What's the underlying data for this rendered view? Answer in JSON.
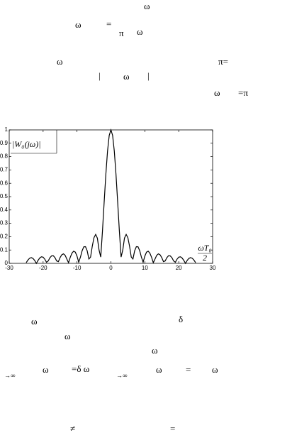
{
  "text": [
    "ω",
    "ω",
    "=",
    "π",
    "ω",
    "ω",
    "π=",
    "|",
    "ω",
    "|",
    "ω",
    "=π",
    "ω",
    "δ",
    "ω",
    "ω",
    "→∞",
    "ω",
    "=δ ω",
    "→∞",
    "ω",
    "=",
    "ω",
    "≠",
    "="
  ],
  "chart_data": {
    "type": "line",
    "annotations": [
      "|W₀(jω)|",
      "ωT₀",
      "2"
    ],
    "x": [
      -25,
      -24.5,
      -24,
      -23.5,
      -23,
      -22.5,
      -22,
      -21.5,
      -21,
      -20.5,
      -20,
      -19.5,
      -19,
      -18.5,
      -18,
      -17.5,
      -17,
      -16.5,
      -16,
      -15.5,
      -15,
      -14.5,
      -14,
      -13.5,
      -13,
      -12.5,
      -12,
      -11.5,
      -11,
      -10.5,
      -10,
      -9.5,
      -9,
      -8.5,
      -8,
      -7.5,
      -7,
      -6.5,
      -6,
      -5.5,
      -5,
      -4.5,
      -4,
      -3.5,
      -3,
      -2.5,
      -2,
      -1.5,
      -1,
      -0.5,
      0,
      0.5,
      1,
      1.5,
      2,
      2.5,
      3,
      3.5,
      4,
      4.5,
      5,
      5.5,
      6,
      6.5,
      7,
      7.5,
      8,
      8.5,
      9,
      9.5,
      10,
      10.5,
      11,
      11.5,
      12,
      12.5,
      13,
      13.5,
      14,
      14.5,
      15,
      15.5,
      16,
      16.5,
      17,
      17.5,
      18,
      18.5,
      19,
      19.5,
      20,
      20.5,
      21,
      21.5,
      22,
      22.5,
      23,
      23.5,
      24,
      24.5,
      25
    ],
    "values": [
      0.005,
      0.024,
      0.038,
      0.043,
      0.037,
      0.022,
      0.0,
      0.022,
      0.04,
      0.049,
      0.046,
      0.031,
      0.008,
      0.018,
      0.042,
      0.056,
      0.057,
      0.043,
      0.018,
      0.013,
      0.043,
      0.064,
      0.071,
      0.06,
      0.032,
      0.005,
      0.045,
      0.076,
      0.091,
      0.084,
      0.054,
      0.008,
      0.046,
      0.094,
      0.124,
      0.125,
      0.094,
      0.033,
      0.047,
      0.128,
      0.192,
      0.217,
      0.189,
      0.1,
      0.047,
      0.239,
      0.455,
      0.665,
      0.841,
      0.959,
      1,
      0.959,
      0.841,
      0.665,
      0.455,
      0.239,
      0.047,
      0.1,
      0.189,
      0.217,
      0.192,
      0.128,
      0.047,
      0.033,
      0.094,
      0.125,
      0.124,
      0.094,
      0.046,
      0.008,
      0.054,
      0.084,
      0.091,
      0.076,
      0.045,
      0.005,
      0.032,
      0.06,
      0.071,
      0.064,
      0.043,
      0.013,
      0.018,
      0.043,
      0.057,
      0.056,
      0.042,
      0.018,
      0.008,
      0.031,
      0.046,
      0.049,
      0.04,
      0.022,
      0.0,
      0.022,
      0.037,
      0.043,
      0.038,
      0.024,
      0.005
    ],
    "color": "#000000",
    "xlim": [
      -30,
      30
    ],
    "xticks": [
      -30,
      -20,
      -10,
      0,
      10,
      20,
      30
    ],
    "ylim": [
      0,
      1
    ],
    "yticks": [
      0,
      0.1,
      0.2,
      0.3,
      0.4,
      0.5,
      0.6,
      0.7,
      0.8,
      0.9,
      1
    ],
    "grid": false
  }
}
